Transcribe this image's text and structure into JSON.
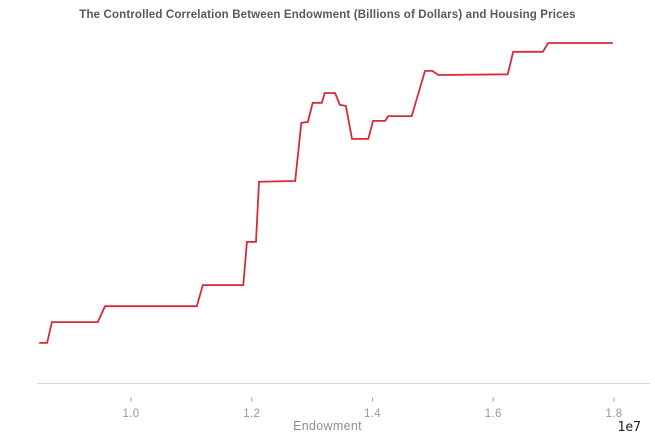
{
  "figure": {
    "title": "The Controlled Correlation Between Endowment (Billions of Dollars) and Housing Prices"
  },
  "x_axis": {
    "label": "Endowment",
    "offset_text": "1e7",
    "tick_labels": [
      "1.0",
      "1.2",
      "1.4",
      "1.6",
      "1.8"
    ]
  },
  "colors": {
    "line": "#d62b36",
    "axis_line": "#d6d6d6",
    "tick_mark": "#ababab",
    "tick_label": "#999999",
    "axis_label": "#8e8e8e",
    "offset_text": "#262626",
    "title": "#595959",
    "background": "#ffffff"
  },
  "chart_data": {
    "type": "line",
    "title": "The Controlled Correlation Between Endowment (Billions of Dollars) and Housing Prices",
    "xlabel": "Endowment",
    "ylabel": "",
    "x_unit_multiplier": "1e7",
    "x_ticks": [
      1.0,
      1.2,
      1.4,
      1.6,
      1.8
    ],
    "xlim": [
      0.844,
      1.86
    ],
    "ylim_relative": [
      0.0,
      1.12
    ],
    "grid": false,
    "legend": "none",
    "y_note": "y-axis is unlabeled in the source figure; y values are relative heights (0 = baseline, 1 = topmost plateau)",
    "series": [
      {
        "name": "Housing Prices",
        "color": "#d62b36",
        "x": [
          0.848,
          0.861,
          0.869,
          0.945,
          0.957,
          1.109,
          1.119,
          1.186,
          1.192,
          1.207,
          1.212,
          1.272,
          1.282,
          1.293,
          1.301,
          1.316,
          1.321,
          1.338,
          1.346,
          1.356,
          1.366,
          1.393,
          1.401,
          1.421,
          1.426,
          1.465,
          1.487,
          1.499,
          1.509,
          1.624,
          1.633,
          1.682,
          1.691,
          1.798
        ],
        "y_relative": [
          0.118,
          0.118,
          0.179,
          0.179,
          0.226,
          0.226,
          0.288,
          0.288,
          0.415,
          0.415,
          0.592,
          0.594,
          0.765,
          0.768,
          0.824,
          0.824,
          0.853,
          0.853,
          0.818,
          0.815,
          0.718,
          0.718,
          0.771,
          0.771,
          0.785,
          0.785,
          0.918,
          0.918,
          0.906,
          0.908,
          0.974,
          0.974,
          1.0,
          1.0
        ]
      }
    ]
  }
}
